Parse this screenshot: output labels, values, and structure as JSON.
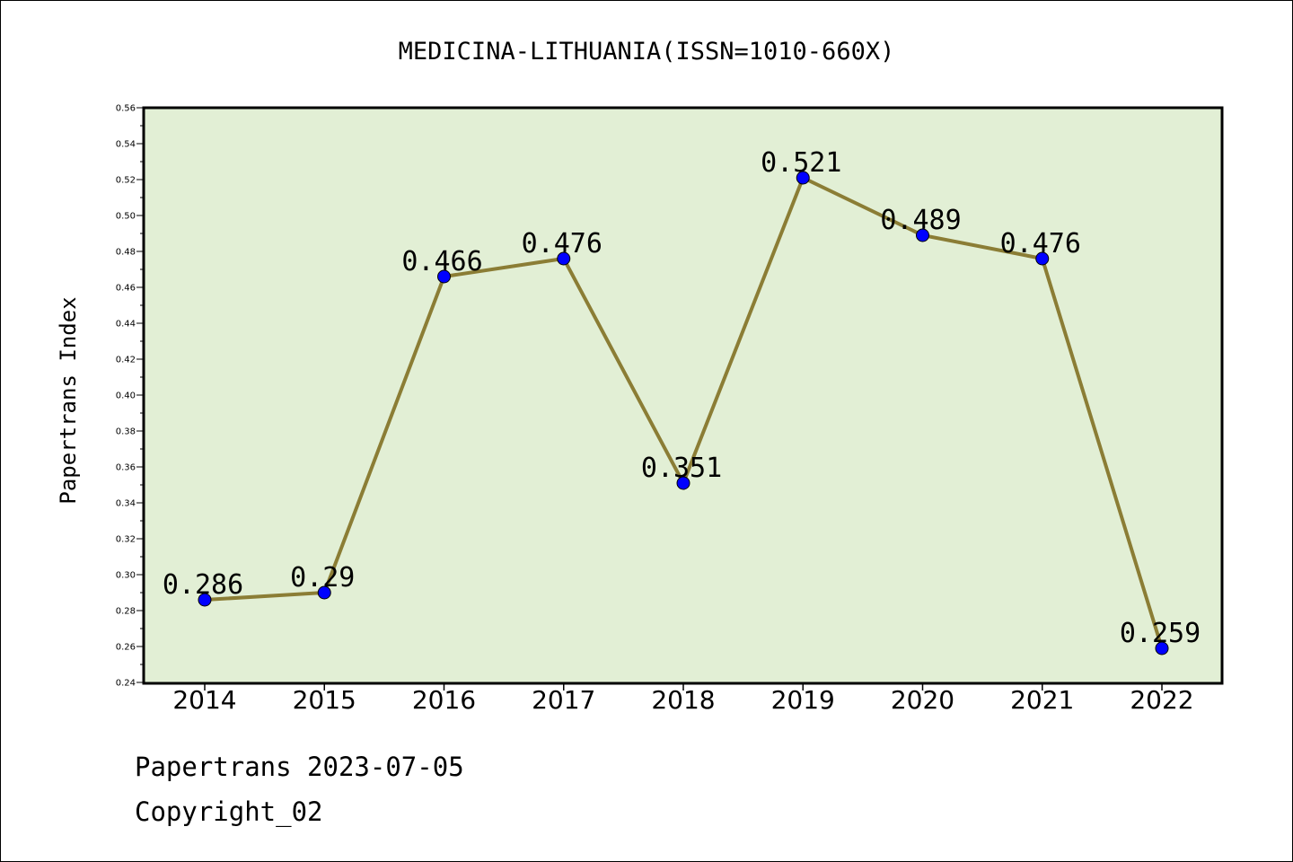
{
  "chart_data": {
    "type": "line",
    "title": "MEDICINA-LITHUANIA(ISSN=1010-660X)",
    "xlabel": "",
    "ylabel": "Papertrans Index",
    "categories": [
      "2014",
      "2015",
      "2016",
      "2017",
      "2018",
      "2019",
      "2020",
      "2021",
      "2022"
    ],
    "values": [
      0.286,
      0.29,
      0.466,
      0.476,
      0.351,
      0.521,
      0.489,
      0.476,
      0.259
    ],
    "data_labels": [
      "0.286",
      "0.29",
      "0.466",
      "0.476",
      "0.351",
      "0.521",
      "0.489",
      "0.476",
      "0.259"
    ],
    "ylim": [
      0.24,
      0.56
    ],
    "yticks": [
      "0.24",
      "0.26",
      "0.28",
      "0.30",
      "0.32",
      "0.34",
      "0.36",
      "0.38",
      "0.40",
      "0.42",
      "0.44",
      "0.46",
      "0.48",
      "0.50",
      "0.52",
      "0.54",
      "0.56"
    ],
    "grid": false,
    "legend": "none",
    "colors": {
      "plot_background": "#e2efd5",
      "line": "#8b7d35",
      "marker": "#0000ff"
    }
  },
  "footer": {
    "line1": "Papertrans 2023-07-05",
    "line2": "Copyright_02"
  }
}
